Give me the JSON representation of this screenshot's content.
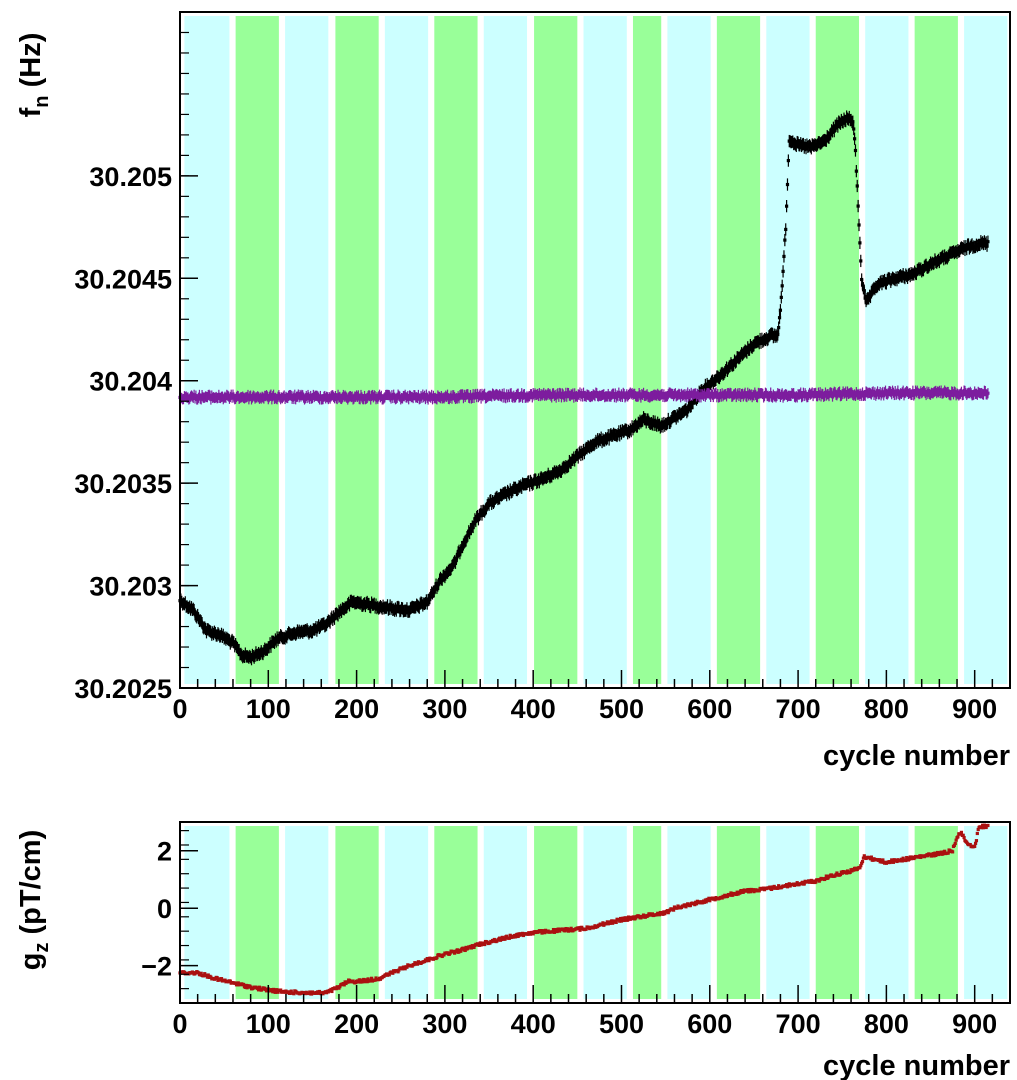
{
  "chart_data": [
    {
      "type": "scatter",
      "xlabel": "cycle number",
      "ylabel": "f",
      "ylabel_sub": "n",
      "ylabel_unit": "(Hz)",
      "xlim": [
        0,
        940
      ],
      "ylim": [
        30.2025,
        30.2058
      ],
      "x_ticks": [
        0,
        100,
        200,
        300,
        400,
        500,
        600,
        700,
        800,
        900
      ],
      "x_tick_labels": [
        "0",
        "100",
        "200",
        "300",
        "400",
        "500",
        "600",
        "700",
        "800",
        "900"
      ],
      "y_ticks": [
        30.2025,
        30.203,
        30.2035,
        30.204,
        30.2045,
        30.205
      ],
      "y_tick_labels": [
        "30.2025",
        "30.203",
        "30.2035",
        "30.204",
        "30.2045",
        "30.205"
      ],
      "bands": [
        {
          "from": 5,
          "to": 56,
          "color": "#ccffff"
        },
        {
          "from": 63,
          "to": 112,
          "color": "#99ff99"
        },
        {
          "from": 119,
          "to": 168,
          "color": "#ccffff"
        },
        {
          "from": 176,
          "to": 225,
          "color": "#99ff99"
        },
        {
          "from": 232,
          "to": 281,
          "color": "#ccffff"
        },
        {
          "from": 288,
          "to": 337,
          "color": "#99ff99"
        },
        {
          "from": 344,
          "to": 393,
          "color": "#ccffff"
        },
        {
          "from": 401,
          "to": 450,
          "color": "#99ff99"
        },
        {
          "from": 457,
          "to": 506,
          "color": "#ccffff"
        },
        {
          "from": 513,
          "to": 545,
          "color": "#99ff99"
        },
        {
          "from": 552,
          "to": 601,
          "color": "#ccffff"
        },
        {
          "from": 608,
          "to": 657,
          "color": "#99ff99"
        },
        {
          "from": 664,
          "to": 713,
          "color": "#ccffff"
        },
        {
          "from": 720,
          "to": 769,
          "color": "#99ff99"
        },
        {
          "from": 776,
          "to": 825,
          "color": "#ccffff"
        },
        {
          "from": 832,
          "to": 881,
          "color": "#99ff99"
        },
        {
          "from": 888,
          "to": 937,
          "color": "#ccffff"
        }
      ],
      "series": [
        {
          "color": "#000000",
          "error": 3e-05,
          "points": [
            [
              0,
              30.20293
            ],
            [
              15,
              30.20288
            ],
            [
              30,
              30.20278
            ],
            [
              45,
              30.20276
            ],
            [
              60,
              30.20272
            ],
            [
              70,
              30.20266
            ],
            [
              80,
              30.20265
            ],
            [
              95,
              30.20268
            ],
            [
              110,
              30.20274
            ],
            [
              130,
              30.20277
            ],
            [
              150,
              30.20278
            ],
            [
              165,
              30.20281
            ],
            [
              180,
              30.20287
            ],
            [
              195,
              30.20292
            ],
            [
              210,
              30.20291
            ],
            [
              225,
              30.2029
            ],
            [
              240,
              30.20289
            ],
            [
              260,
              30.20288
            ],
            [
              280,
              30.20292
            ],
            [
              295,
              30.20303
            ],
            [
              310,
              30.2031
            ],
            [
              320,
              30.2032
            ],
            [
              335,
              30.20332
            ],
            [
              350,
              30.2034
            ],
            [
              370,
              30.20345
            ],
            [
              390,
              30.20349
            ],
            [
              410,
              30.20352
            ],
            [
              430,
              30.20356
            ],
            [
              450,
              30.20363
            ],
            [
              470,
              30.2037
            ],
            [
              490,
              30.20373
            ],
            [
              510,
              30.20376
            ],
            [
              525,
              30.20381
            ],
            [
              545,
              30.20378
            ],
            [
              560,
              30.20382
            ],
            [
              575,
              30.20386
            ],
            [
              590,
              30.20395
            ],
            [
              610,
              30.20402
            ],
            [
              630,
              30.2041
            ],
            [
              650,
              30.20418
            ],
            [
              670,
              30.20422
            ],
            [
              677,
              30.20422
            ],
            [
              681,
              30.2044
            ],
            [
              684,
              30.2046
            ],
            [
              686,
              30.20475
            ],
            [
              690,
              30.20518
            ],
            [
              700,
              30.20515
            ],
            [
              715,
              30.20514
            ],
            [
              730,
              30.20517
            ],
            [
              745,
              30.20525
            ],
            [
              755,
              30.20528
            ],
            [
              762,
              30.20527
            ],
            [
              765,
              30.20512
            ],
            [
              772,
              30.2045
            ],
            [
              777,
              30.20438
            ],
            [
              790,
              30.20447
            ],
            [
              810,
              30.2045
            ],
            [
              830,
              30.20452
            ],
            [
              850,
              30.20457
            ],
            [
              870,
              30.20461
            ],
            [
              890,
              30.20465
            ],
            [
              905,
              30.20467
            ],
            [
              915,
              30.20467
            ]
          ]
        },
        {
          "color": "#7d1d9e",
          "error": 2.5e-05,
          "points": [
            [
              0,
              30.20392
            ],
            [
              100,
              30.20392
            ],
            [
              200,
              30.20392
            ],
            [
              300,
              30.20392
            ],
            [
              400,
              30.20393
            ],
            [
              500,
              30.20393
            ],
            [
              600,
              30.20393
            ],
            [
              700,
              30.20393
            ],
            [
              800,
              30.20394
            ],
            [
              915,
              30.20394
            ]
          ]
        }
      ]
    },
    {
      "type": "scatter",
      "xlabel": "cycle number",
      "ylabel": "g",
      "ylabel_sub": "z",
      "ylabel_unit": "(pT/cm)",
      "xlim": [
        0,
        940
      ],
      "ylim": [
        -3.3,
        3.0
      ],
      "x_ticks": [
        0,
        100,
        200,
        300,
        400,
        500,
        600,
        700,
        800,
        900
      ],
      "x_tick_labels": [
        "0",
        "100",
        "200",
        "300",
        "400",
        "500",
        "600",
        "700",
        "800",
        "900"
      ],
      "y_ticks": [
        -2,
        0,
        2
      ],
      "y_tick_labels": [
        "−2",
        "0",
        "2"
      ],
      "series": [
        {
          "color": "#aa1111",
          "points": [
            [
              0,
              -2.25
            ],
            [
              20,
              -2.25
            ],
            [
              40,
              -2.45
            ],
            [
              60,
              -2.6
            ],
            [
              80,
              -2.75
            ],
            [
              100,
              -2.85
            ],
            [
              120,
              -2.92
            ],
            [
              150,
              -2.95
            ],
            [
              165,
              -2.95
            ],
            [
              180,
              -2.75
            ],
            [
              190,
              -2.55
            ],
            [
              200,
              -2.55
            ],
            [
              215,
              -2.5
            ],
            [
              225,
              -2.45
            ],
            [
              240,
              -2.25
            ],
            [
              260,
              -2.0
            ],
            [
              280,
              -1.8
            ],
            [
              300,
              -1.6
            ],
            [
              320,
              -1.45
            ],
            [
              340,
              -1.25
            ],
            [
              360,
              -1.1
            ],
            [
              380,
              -0.95
            ],
            [
              400,
              -0.85
            ],
            [
              420,
              -0.8
            ],
            [
              440,
              -0.75
            ],
            [
              460,
              -0.7
            ],
            [
              480,
              -0.55
            ],
            [
              500,
              -0.4
            ],
            [
              520,
              -0.3
            ],
            [
              540,
              -0.2
            ],
            [
              550,
              -0.15
            ],
            [
              560,
              0.0
            ],
            [
              580,
              0.15
            ],
            [
              600,
              0.3
            ],
            [
              620,
              0.45
            ],
            [
              640,
              0.6
            ],
            [
              660,
              0.65
            ],
            [
              680,
              0.75
            ],
            [
              700,
              0.85
            ],
            [
              720,
              0.95
            ],
            [
              740,
              1.15
            ],
            [
              760,
              1.3
            ],
            [
              770,
              1.4
            ],
            [
              775,
              1.8
            ],
            [
              780,
              1.75
            ],
            [
              800,
              1.6
            ],
            [
              820,
              1.7
            ],
            [
              840,
              1.8
            ],
            [
              860,
              1.9
            ],
            [
              875,
              2.0
            ],
            [
              880,
              2.5
            ],
            [
              885,
              2.6
            ],
            [
              890,
              2.35
            ],
            [
              895,
              2.2
            ],
            [
              900,
              2.1
            ],
            [
              905,
              2.85
            ],
            [
              915,
              2.85
            ]
          ]
        }
      ]
    }
  ]
}
